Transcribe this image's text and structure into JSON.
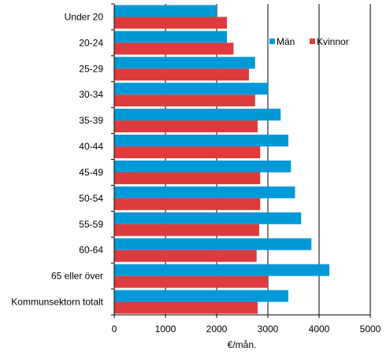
{
  "chart_data": {
    "type": "bar",
    "orientation": "horizontal",
    "categories": [
      "Under 20",
      "20-24",
      "25-29",
      "30-34",
      "35-39",
      "40-44",
      "45-49",
      "50-54",
      "55-59",
      "60-64",
      "65 eller över",
      "Kommunsektorn totalt"
    ],
    "series": [
      {
        "name": "Män",
        "color": "#0099d8",
        "values": [
          2000,
          2200,
          2750,
          3000,
          3250,
          3400,
          3450,
          3530,
          3650,
          3850,
          4200,
          3400
        ]
      },
      {
        "name": "Kvinnor",
        "color": "#dd3b3d",
        "values": [
          2200,
          2330,
          2630,
          2750,
          2800,
          2850,
          2850,
          2850,
          2830,
          2780,
          3000,
          2800
        ]
      }
    ],
    "xlabel": "€/mån.",
    "xlim": [
      0,
      5000
    ],
    "xticks": [
      0,
      1000,
      2000,
      3000,
      4000,
      5000
    ],
    "grid": "vertical lines at x ticks",
    "legend_position": "top-right"
  }
}
